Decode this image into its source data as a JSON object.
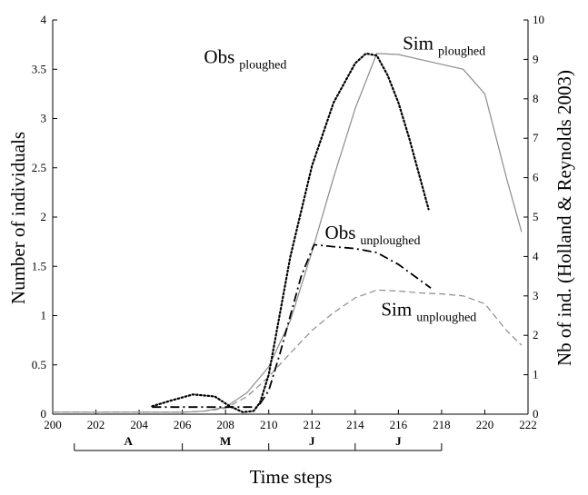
{
  "chart_data": {
    "type": "line",
    "xlabel": "Time steps",
    "ylabel_left": "Number of individuals",
    "ylabel_right": "Nb of ind. (Holland & Reynolds 2003)",
    "xlim": [
      200,
      222
    ],
    "ylim_left": [
      0,
      4
    ],
    "ylim_right": [
      0,
      10
    ],
    "x_ticks": [
      200,
      202,
      204,
      206,
      208,
      210,
      212,
      214,
      216,
      218,
      220,
      222
    ],
    "y_ticks_left": [
      "0",
      "0.5",
      "1",
      "1.5",
      "2",
      "2.5",
      "3",
      "3.5",
      "4"
    ],
    "y_ticks_right": [
      "0",
      "1",
      "2",
      "3",
      "4",
      "5",
      "6",
      "7",
      "8",
      "9",
      "10"
    ],
    "months": [
      {
        "label": "A",
        "start": 201,
        "end": 206
      },
      {
        "label": "M",
        "start": 206,
        "end": 210
      },
      {
        "label": "J",
        "start": 210,
        "end": 214
      },
      {
        "label": "J",
        "start": 214,
        "end": 218
      }
    ],
    "annotations": [
      {
        "main": "Obs",
        "sub": "ploughed",
        "x": 207.0,
        "y": 3.56
      },
      {
        "main": "Sim",
        "sub": "ploughed",
        "x": 216.2,
        "y": 3.7
      },
      {
        "main": "Obs",
        "sub": "unploughed",
        "x": 212.6,
        "y": 1.78
      },
      {
        "main": "Sim",
        "sub": "unploughed",
        "x": 215.2,
        "y": 1.0
      }
    ],
    "series": [
      {
        "name": "Sim ploughed",
        "axis": "left",
        "style": "solid",
        "color": "#8c8c8c",
        "x": [
          200,
          204,
          206,
          207,
          208,
          209,
          210,
          211,
          212,
          213,
          214,
          215,
          216,
          217,
          218,
          219,
          220,
          221,
          221.7
        ],
        "y": [
          0.02,
          0.02,
          0.02,
          0.03,
          0.07,
          0.22,
          0.48,
          0.95,
          1.65,
          2.4,
          3.1,
          3.66,
          3.65,
          3.6,
          3.55,
          3.5,
          3.25,
          2.4,
          1.85
        ]
      },
      {
        "name": "Sim unploughed",
        "axis": "left",
        "style": "dashed",
        "color": "#8c8c8c",
        "x": [
          200,
          204,
          206,
          207,
          208,
          209,
          210,
          211,
          212,
          213,
          214,
          215,
          216,
          217,
          218,
          219,
          220,
          221,
          221.7
        ],
        "y": [
          0.02,
          0.02,
          0.02,
          0.03,
          0.06,
          0.18,
          0.38,
          0.62,
          0.85,
          1.03,
          1.18,
          1.26,
          1.25,
          1.23,
          1.22,
          1.2,
          1.12,
          0.85,
          0.7
        ]
      },
      {
        "name": "Obs ploughed",
        "axis": "right",
        "style": "dotted",
        "color": "#000000",
        "x": [
          204.6,
          205.5,
          206.5,
          207.5,
          208.2,
          208.8,
          209.3,
          209.6,
          210,
          210.5,
          211,
          212,
          213,
          214,
          214.5,
          215,
          215.5,
          216,
          216.5,
          217,
          217.4
        ],
        "y": [
          0.2,
          0.35,
          0.5,
          0.45,
          0.2,
          0.05,
          0.08,
          0.3,
          1.0,
          2.5,
          4.0,
          6.3,
          7.9,
          8.9,
          9.15,
          9.1,
          8.6,
          7.9,
          7.0,
          6.0,
          5.2
        ]
      },
      {
        "name": "Obs unploughed",
        "axis": "right",
        "style": "dashdot",
        "color": "#000000",
        "x": [
          204.6,
          206,
          208,
          209.5,
          210,
          210.5,
          211,
          211.5,
          212.1,
          213,
          214,
          215,
          216,
          217,
          217.5
        ],
        "y": [
          0.18,
          0.18,
          0.18,
          0.18,
          0.6,
          1.5,
          2.5,
          3.5,
          4.3,
          4.25,
          4.2,
          4.1,
          3.8,
          3.4,
          3.2
        ]
      }
    ]
  }
}
